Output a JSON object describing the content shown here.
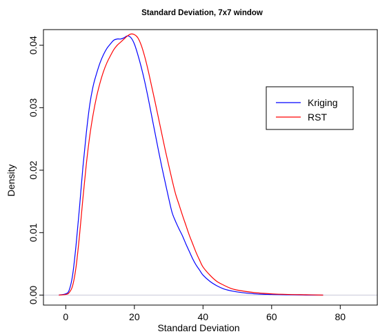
{
  "chart_data": {
    "type": "line",
    "title": "Standard Deviation, 7x7 window",
    "xlabel": "Standard Deviation",
    "ylabel": "Density",
    "xlim": [
      -6.5,
      91
    ],
    "ylim": [
      -0.0016,
      0.0425
    ],
    "xticks": [
      0,
      20,
      40,
      60,
      80
    ],
    "yticks": [
      0.0,
      0.01,
      0.02,
      0.03,
      0.04
    ],
    "ytick_labels": [
      "0.00",
      "0.01",
      "0.02",
      "0.03",
      "0.04"
    ],
    "grid": false,
    "legend_position": "top-right",
    "baseline": {
      "y": 0,
      "color": "#c8c8d8"
    },
    "series": [
      {
        "name": "Kriging",
        "color": "#0000ff",
        "x": [
          -2,
          0,
          1,
          2,
          3,
          4,
          5,
          6,
          7,
          8,
          9,
          10,
          11,
          12,
          13,
          14,
          15,
          16,
          17,
          18,
          19,
          20,
          21,
          22,
          23,
          24,
          25,
          26,
          27,
          28,
          29,
          30,
          31,
          32,
          33,
          34,
          35,
          36,
          37,
          38,
          39,
          40,
          42,
          44,
          46,
          48,
          50,
          55,
          60,
          65,
          70,
          75
        ],
        "values": [
          0.0,
          0.0002,
          0.0008,
          0.0032,
          0.008,
          0.014,
          0.0205,
          0.026,
          0.0305,
          0.0335,
          0.0355,
          0.0372,
          0.0385,
          0.0395,
          0.0402,
          0.0408,
          0.041,
          0.041,
          0.0412,
          0.0415,
          0.0412,
          0.0402,
          0.0385,
          0.0365,
          0.0342,
          0.0316,
          0.0288,
          0.026,
          0.0232,
          0.0205,
          0.018,
          0.0155,
          0.0132,
          0.0118,
          0.0106,
          0.0095,
          0.0082,
          0.007,
          0.0058,
          0.0048,
          0.004,
          0.0032,
          0.0022,
          0.0015,
          0.001,
          0.0007,
          0.0005,
          0.0002,
          0.0001,
          5e-05,
          0.0,
          0.0
        ]
      },
      {
        "name": "RST",
        "color": "#ff0000",
        "x": [
          -2,
          0,
          1,
          2,
          3,
          4,
          5,
          6,
          7,
          8,
          9,
          10,
          11,
          12,
          13,
          14,
          15,
          16,
          17,
          18,
          19,
          20,
          21,
          22,
          23,
          24,
          25,
          26,
          27,
          28,
          29,
          30,
          31,
          32,
          33,
          34,
          35,
          36,
          37,
          38,
          39,
          40,
          42,
          44,
          46,
          48,
          50,
          55,
          60,
          65,
          70,
          75
        ],
        "values": [
          0.0,
          0.0001,
          0.0004,
          0.0015,
          0.0045,
          0.0095,
          0.0155,
          0.021,
          0.0255,
          0.029,
          0.0318,
          0.034,
          0.0358,
          0.0372,
          0.0383,
          0.0393,
          0.04,
          0.0405,
          0.041,
          0.0415,
          0.0418,
          0.0417,
          0.0412,
          0.04,
          0.0382,
          0.036,
          0.0335,
          0.031,
          0.0284,
          0.0258,
          0.0232,
          0.0208,
          0.0184,
          0.0162,
          0.0145,
          0.0128,
          0.0112,
          0.0096,
          0.0082,
          0.0068,
          0.0056,
          0.0045,
          0.0032,
          0.0022,
          0.0016,
          0.0011,
          0.0008,
          0.0004,
          0.0002,
          0.0001,
          5e-05,
          0.0
        ]
      }
    ]
  }
}
